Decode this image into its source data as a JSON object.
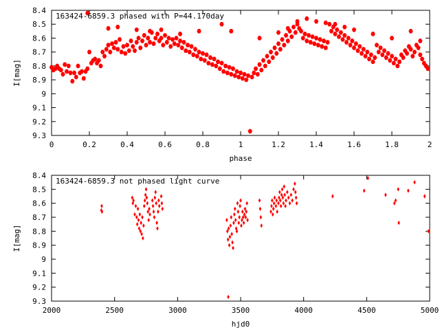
{
  "chart_data": [
    {
      "type": "scatter",
      "title": "163424-6859.3 phased with P=44.170day",
      "xlabel": "phase",
      "ylabel": "I[mag]",
      "xlim": [
        0,
        2
      ],
      "ylim": [
        9.3,
        8.4
      ],
      "y_inverted": true,
      "grid": false,
      "marker": "filled-hexagon",
      "color": "#ff0000",
      "x_ticks": [
        "0",
        "0.2",
        "0.4",
        "0.6",
        "0.8",
        "1",
        "1.2",
        "1.4",
        "1.6",
        "1.8",
        "2"
      ],
      "y_ticks": [
        "8.4",
        "8.5",
        "8.6",
        "8.7",
        "8.8",
        "8.9",
        "9",
        "9.1",
        "9.2",
        "9.3"
      ],
      "points": [
        [
          0.0,
          8.81
        ],
        [
          0.01,
          8.83
        ],
        [
          0.02,
          8.82
        ],
        [
          0.03,
          8.8
        ],
        [
          0.04,
          8.82
        ],
        [
          0.05,
          8.83
        ],
        [
          0.06,
          8.86
        ],
        [
          0.07,
          8.79
        ],
        [
          0.08,
          8.84
        ],
        [
          0.09,
          8.8
        ],
        [
          0.1,
          8.85
        ],
        [
          0.11,
          8.91
        ],
        [
          0.12,
          8.85
        ],
        [
          0.13,
          8.88
        ],
        [
          0.14,
          8.8
        ],
        [
          0.15,
          8.85
        ],
        [
          0.16,
          8.84
        ],
        [
          0.17,
          8.89
        ],
        [
          0.18,
          8.84
        ],
        [
          0.19,
          8.82
        ],
        [
          0.2,
          8.7
        ],
        [
          0.21,
          8.78
        ],
        [
          0.22,
          8.76
        ],
        [
          0.23,
          8.75
        ],
        [
          0.24,
          8.78
        ],
        [
          0.25,
          8.76
        ],
        [
          0.26,
          8.8
        ],
        [
          0.27,
          8.7
        ],
        [
          0.28,
          8.73
        ],
        [
          0.29,
          8.68
        ],
        [
          0.3,
          8.65
        ],
        [
          0.31,
          8.7
        ],
        [
          0.32,
          8.64
        ],
        [
          0.33,
          8.67
        ],
        [
          0.34,
          8.63
        ],
        [
          0.35,
          8.68
        ],
        [
          0.36,
          8.61
        ],
        [
          0.37,
          8.7
        ],
        [
          0.38,
          8.66
        ],
        [
          0.39,
          8.71
        ],
        [
          0.4,
          8.65
        ],
        [
          0.41,
          8.69
        ],
        [
          0.42,
          8.62
        ],
        [
          0.43,
          8.66
        ],
        [
          0.44,
          8.69
        ],
        [
          0.45,
          8.63
        ],
        [
          0.46,
          8.6
        ],
        [
          0.47,
          8.67
        ],
        [
          0.48,
          8.62
        ],
        [
          0.49,
          8.58
        ],
        [
          0.5,
          8.65
        ],
        [
          0.51,
          8.6
        ],
        [
          0.52,
          8.63
        ],
        [
          0.53,
          8.56
        ],
        [
          0.54,
          8.64
        ],
        [
          0.55,
          8.6
        ],
        [
          0.56,
          8.57
        ],
        [
          0.57,
          8.62
        ],
        [
          0.58,
          8.6
        ],
        [
          0.59,
          8.65
        ],
        [
          0.6,
          8.58
        ],
        [
          0.61,
          8.63
        ],
        [
          0.62,
          8.6
        ],
        [
          0.63,
          8.66
        ],
        [
          0.64,
          8.61
        ],
        [
          0.65,
          8.64
        ],
        [
          0.66,
          8.6
        ],
        [
          0.67,
          8.65
        ],
        [
          0.68,
          8.62
        ],
        [
          0.69,
          8.67
        ],
        [
          0.7,
          8.63
        ],
        [
          0.71,
          8.69
        ],
        [
          0.72,
          8.65
        ],
        [
          0.73,
          8.7
        ],
        [
          0.74,
          8.66
        ],
        [
          0.75,
          8.72
        ],
        [
          0.76,
          8.68
        ],
        [
          0.77,
          8.73
        ],
        [
          0.78,
          8.7
        ],
        [
          0.79,
          8.75
        ],
        [
          0.8,
          8.71
        ],
        [
          0.81,
          8.76
        ],
        [
          0.82,
          8.72
        ],
        [
          0.83,
          8.78
        ],
        [
          0.84,
          8.74
        ],
        [
          0.85,
          8.79
        ],
        [
          0.86,
          8.75
        ],
        [
          0.87,
          8.8
        ],
        [
          0.88,
          8.77
        ],
        [
          0.89,
          8.82
        ],
        [
          0.9,
          8.78
        ],
        [
          0.91,
          8.84
        ],
        [
          0.92,
          8.8
        ],
        [
          0.93,
          8.85
        ],
        [
          0.94,
          8.81
        ],
        [
          0.95,
          8.86
        ],
        [
          0.96,
          8.82
        ],
        [
          0.97,
          8.87
        ],
        [
          0.98,
          8.84
        ],
        [
          0.99,
          8.88
        ],
        [
          1.0,
          8.85
        ],
        [
          1.01,
          8.89
        ],
        [
          1.02,
          8.86
        ],
        [
          1.03,
          8.9
        ],
        [
          1.04,
          8.87
        ],
        [
          1.05,
          9.27
        ],
        [
          1.06,
          8.88
        ],
        [
          1.07,
          8.85
        ],
        [
          1.08,
          8.82
        ],
        [
          1.09,
          8.86
        ],
        [
          1.1,
          8.79
        ],
        [
          1.11,
          8.83
        ],
        [
          1.12,
          8.76
        ],
        [
          1.13,
          8.8
        ],
        [
          1.14,
          8.73
        ],
        [
          1.15,
          8.77
        ],
        [
          1.16,
          8.7
        ],
        [
          1.17,
          8.74
        ],
        [
          1.18,
          8.67
        ],
        [
          1.19,
          8.71
        ],
        [
          1.2,
          8.64
        ],
        [
          1.21,
          8.68
        ],
        [
          1.22,
          8.61
        ],
        [
          1.23,
          8.65
        ],
        [
          1.24,
          8.58
        ],
        [
          1.25,
          8.62
        ],
        [
          1.26,
          8.55
        ],
        [
          1.27,
          8.59
        ],
        [
          1.28,
          8.52
        ],
        [
          1.29,
          8.56
        ],
        [
          1.3,
          8.5
        ],
        [
          1.31,
          8.53
        ],
        [
          1.32,
          8.55
        ],
        [
          1.33,
          8.6
        ],
        [
          1.34,
          8.57
        ],
        [
          1.35,
          8.62
        ],
        [
          1.36,
          8.58
        ],
        [
          1.37,
          8.63
        ],
        [
          1.38,
          8.59
        ],
        [
          1.39,
          8.64
        ],
        [
          1.4,
          8.6
        ],
        [
          1.41,
          8.65
        ],
        [
          1.42,
          8.61
        ],
        [
          1.43,
          8.66
        ],
        [
          1.44,
          8.62
        ],
        [
          1.45,
          8.67
        ],
        [
          1.46,
          8.63
        ],
        [
          1.47,
          8.5
        ],
        [
          1.48,
          8.55
        ],
        [
          1.49,
          8.52
        ],
        [
          1.5,
          8.57
        ],
        [
          1.51,
          8.54
        ],
        [
          1.52,
          8.59
        ],
        [
          1.53,
          8.56
        ],
        [
          1.54,
          8.61
        ],
        [
          1.55,
          8.58
        ],
        [
          1.56,
          8.63
        ],
        [
          1.57,
          8.6
        ],
        [
          1.58,
          8.65
        ],
        [
          1.59,
          8.62
        ],
        [
          1.6,
          8.67
        ],
        [
          1.61,
          8.64
        ],
        [
          1.62,
          8.69
        ],
        [
          1.63,
          8.66
        ],
        [
          1.64,
          8.71
        ],
        [
          1.65,
          8.68
        ],
        [
          1.66,
          8.73
        ],
        [
          1.67,
          8.7
        ],
        [
          1.68,
          8.75
        ],
        [
          1.69,
          8.72
        ],
        [
          1.7,
          8.77
        ],
        [
          1.71,
          8.74
        ],
        [
          1.72,
          8.65
        ],
        [
          1.73,
          8.7
        ],
        [
          1.74,
          8.67
        ],
        [
          1.75,
          8.72
        ],
        [
          1.76,
          8.69
        ],
        [
          1.77,
          8.74
        ],
        [
          1.78,
          8.71
        ],
        [
          1.79,
          8.76
        ],
        [
          1.8,
          8.73
        ],
        [
          1.81,
          8.78
        ],
        [
          1.82,
          8.75
        ],
        [
          1.83,
          8.8
        ],
        [
          1.84,
          8.77
        ],
        [
          1.85,
          8.72
        ],
        [
          1.86,
          8.74
        ],
        [
          1.87,
          8.69
        ],
        [
          1.88,
          8.71
        ],
        [
          1.89,
          8.66
        ],
        [
          1.9,
          8.68
        ],
        [
          1.91,
          8.73
        ],
        [
          1.92,
          8.7
        ],
        [
          1.93,
          8.65
        ],
        [
          1.94,
          8.67
        ],
        [
          1.95,
          8.72
        ],
        [
          1.96,
          8.75
        ],
        [
          1.97,
          8.78
        ],
        [
          1.98,
          8.8
        ],
        [
          1.99,
          8.82
        ],
        [
          0.19,
          8.42
        ],
        [
          0.3,
          8.53
        ],
        [
          0.35,
          8.52
        ],
        [
          0.45,
          8.54
        ],
        [
          0.52,
          8.55
        ],
        [
          0.58,
          8.54
        ],
        [
          0.68,
          8.57
        ],
        [
          0.78,
          8.55
        ],
        [
          0.9,
          8.5
        ],
        [
          0.95,
          8.55
        ],
        [
          1.1,
          8.6
        ],
        [
          1.2,
          8.56
        ],
        [
          1.25,
          8.53
        ],
        [
          1.3,
          8.48
        ],
        [
          1.35,
          8.46
        ],
        [
          1.4,
          8.48
        ],
        [
          1.45,
          8.49
        ],
        [
          1.5,
          8.5
        ],
        [
          1.55,
          8.52
        ],
        [
          1.6,
          8.54
        ],
        [
          1.7,
          8.57
        ],
        [
          1.8,
          8.6
        ],
        [
          1.9,
          8.55
        ],
        [
          1.95,
          8.62
        ]
      ]
    },
    {
      "type": "scatter",
      "title": "163424-6859.3 not phased light curve",
      "xlabel": "hjd0",
      "ylabel": "I[mag]",
      "xlim": [
        2000,
        5000
      ],
      "ylim": [
        9.3,
        8.4
      ],
      "y_inverted": true,
      "grid": false,
      "marker": "filled-diamond",
      "color": "#ff0000",
      "x_ticks": [
        "2000",
        "2500",
        "3000",
        "3500",
        "4000",
        "4500",
        "5000"
      ],
      "y_ticks": [
        "8.4",
        "8.5",
        "8.6",
        "8.7",
        "8.8",
        "8.9",
        "9",
        "9.1",
        "9.2",
        "9.3"
      ],
      "points": [
        [
          2395,
          8.65
        ],
        [
          2398,
          8.62
        ],
        [
          2400,
          8.66
        ],
        [
          2640,
          8.56
        ],
        [
          2645,
          8.6
        ],
        [
          2650,
          8.58
        ],
        [
          2660,
          8.68
        ],
        [
          2668,
          8.62
        ],
        [
          2675,
          8.7
        ],
        [
          2680,
          8.75
        ],
        [
          2685,
          8.64
        ],
        [
          2690,
          8.72
        ],
        [
          2695,
          8.78
        ],
        [
          2700,
          8.68
        ],
        [
          2705,
          8.8
        ],
        [
          2710,
          8.74
        ],
        [
          2715,
          8.82
        ],
        [
          2720,
          8.7
        ],
        [
          2725,
          8.85
        ],
        [
          2730,
          8.76
        ],
        [
          2735,
          8.62
        ],
        [
          2740,
          8.58
        ],
        [
          2745,
          8.54
        ],
        [
          2750,
          8.5
        ],
        [
          2755,
          8.56
        ],
        [
          2760,
          8.6
        ],
        [
          2765,
          8.66
        ],
        [
          2770,
          8.72
        ],
        [
          2775,
          8.64
        ],
        [
          2780,
          8.68
        ],
        [
          2800,
          8.58
        ],
        [
          2805,
          8.62
        ],
        [
          2810,
          8.66
        ],
        [
          2815,
          8.7
        ],
        [
          2820,
          8.56
        ],
        [
          2825,
          8.52
        ],
        [
          2830,
          8.6
        ],
        [
          2835,
          8.74
        ],
        [
          2840,
          8.78
        ],
        [
          2845,
          8.66
        ],
        [
          2850,
          8.58
        ],
        [
          2855,
          8.62
        ],
        [
          2870,
          8.55
        ],
        [
          2875,
          8.6
        ],
        [
          2880,
          8.64
        ],
        [
          3390,
          8.72
        ],
        [
          3395,
          8.8
        ],
        [
          3400,
          8.86
        ],
        [
          3402,
          9.27
        ],
        [
          3405,
          8.78
        ],
        [
          3410,
          8.9
        ],
        [
          3415,
          8.84
        ],
        [
          3420,
          8.76
        ],
        [
          3425,
          8.7
        ],
        [
          3430,
          8.82
        ],
        [
          3435,
          8.88
        ],
        [
          3440,
          8.92
        ],
        [
          3445,
          8.74
        ],
        [
          3450,
          8.68
        ],
        [
          3455,
          8.64
        ],
        [
          3460,
          8.72
        ],
        [
          3465,
          8.78
        ],
        [
          3470,
          8.8
        ],
        [
          3475,
          8.6
        ],
        [
          3480,
          8.66
        ],
        [
          3485,
          8.74
        ],
        [
          3490,
          8.7
        ],
        [
          3495,
          8.62
        ],
        [
          3500,
          8.58
        ],
        [
          3505,
          8.76
        ],
        [
          3510,
          8.72
        ],
        [
          3515,
          8.66
        ],
        [
          3520,
          8.7
        ],
        [
          3525,
          8.74
        ],
        [
          3530,
          8.68
        ],
        [
          3535,
          8.64
        ],
        [
          3540,
          8.7
        ],
        [
          3545,
          8.66
        ],
        [
          3550,
          8.6
        ],
        [
          3555,
          8.72
        ],
        [
          3650,
          8.58
        ],
        [
          3655,
          8.64
        ],
        [
          3660,
          8.7
        ],
        [
          3665,
          8.76
        ],
        [
          3740,
          8.66
        ],
        [
          3745,
          8.62
        ],
        [
          3750,
          8.58
        ],
        [
          3755,
          8.68
        ],
        [
          3760,
          8.64
        ],
        [
          3765,
          8.6
        ],
        [
          3770,
          8.56
        ],
        [
          3780,
          8.62
        ],
        [
          3785,
          8.58
        ],
        [
          3790,
          8.66
        ],
        [
          3800,
          8.6
        ],
        [
          3805,
          8.56
        ],
        [
          3810,
          8.52
        ],
        [
          3815,
          8.58
        ],
        [
          3820,
          8.62
        ],
        [
          3825,
          8.54
        ],
        [
          3830,
          8.5
        ],
        [
          3835,
          8.56
        ],
        [
          3840,
          8.6
        ],
        [
          3845,
          8.48
        ],
        [
          3850,
          8.54
        ],
        [
          3855,
          8.62
        ],
        [
          3860,
          8.58
        ],
        [
          3870,
          8.52
        ],
        [
          3880,
          8.56
        ],
        [
          3890,
          8.6
        ],
        [
          3900,
          8.54
        ],
        [
          3910,
          8.58
        ],
        [
          3920,
          8.5
        ],
        [
          3930,
          8.46
        ],
        [
          3935,
          8.52
        ],
        [
          3940,
          8.56
        ],
        [
          3945,
          8.6
        ],
        [
          4230,
          8.55
        ],
        [
          4480,
          8.51
        ],
        [
          4510,
          8.42
        ],
        [
          4650,
          8.54
        ],
        [
          4720,
          8.6
        ],
        [
          4730,
          8.58
        ],
        [
          4750,
          8.5
        ],
        [
          4755,
          8.74
        ],
        [
          4830,
          8.51
        ],
        [
          4880,
          8.45
        ],
        [
          4960,
          8.55
        ],
        [
          4990,
          8.8
        ]
      ]
    }
  ]
}
